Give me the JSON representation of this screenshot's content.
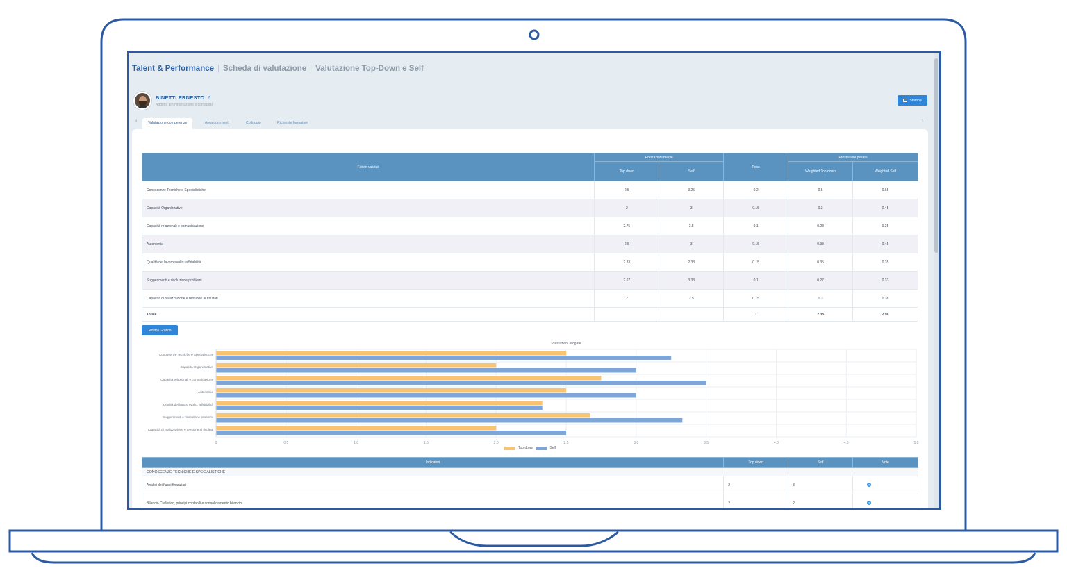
{
  "breadcrumb": [
    "Talent & Performance",
    "Scheda di valutazione",
    "Valutazione Top-Down e Self"
  ],
  "employee": {
    "name": "BINETTI ERNESTO",
    "role": "Addetto amministrazione e contabilità"
  },
  "print_label": "Stampa",
  "tabs": [
    "Valutazione competenze",
    "Area commenti",
    "Colloquio",
    "Richieste formative"
  ],
  "table": {
    "header_factors": "Fattori valutati",
    "group_avg": "Prestazioni medie",
    "col_topdown": "Top down",
    "col_self": "Self",
    "col_weight": "Peso",
    "group_weighted": "Prestazioni pesate",
    "col_wtopdown": "Weighted Top down",
    "col_wself": "Weighted Self",
    "rows": [
      {
        "factor": "Conoscenze Tecniche e Specialistiche",
        "topdown": "2.5",
        "self": "3.25",
        "weight": "0.2",
        "wtop": "0.5",
        "wself": "0.65"
      },
      {
        "factor": "Capacità Organizzative",
        "topdown": "2",
        "self": "3",
        "weight": "0.15",
        "wtop": "0.3",
        "wself": "0.45"
      },
      {
        "factor": "Capacità relazionali e comunicazione",
        "topdown": "2.75",
        "self": "3.5",
        "weight": "0.1",
        "wtop": "0.28",
        "wself": "0.35"
      },
      {
        "factor": "Autonomia",
        "topdown": "2.5",
        "self": "3",
        "weight": "0.15",
        "wtop": "0.38",
        "wself": "0.45"
      },
      {
        "factor": "Qualità del lavoro svolto: affidabilità",
        "topdown": "2.33",
        "self": "2.33",
        "weight": "0.15",
        "wtop": "0.35",
        "wself": "0.35"
      },
      {
        "factor": "Suggerimenti e risoluzione problemi",
        "topdown": "2.67",
        "self": "3.33",
        "weight": "0.1",
        "wtop": "0.27",
        "wself": "0.33"
      },
      {
        "factor": "Capacità di realizzazione e tensione ai risultati",
        "topdown": "2",
        "self": "2.5",
        "weight": "0.15",
        "wtop": "0.3",
        "wself": "0.38"
      }
    ],
    "total": {
      "label": "Totale",
      "weight": "1",
      "wtop": "2.38",
      "wself": "2.96"
    }
  },
  "show_chart_label": "Mostra Grafico",
  "chart_data": {
    "type": "bar",
    "orientation": "horizontal",
    "title": "Prestazioni erogate",
    "categories": [
      "Conoscenze Tecniche e Specialistiche",
      "Capacità Organizzative",
      "Capacità relazionali e comunicazione",
      "Autonomia",
      "Qualità del lavoro svolto: affidabilità",
      "Suggerimenti e risoluzione problemi",
      "Capacità di realizzazione e tensione ai risultati"
    ],
    "series": [
      {
        "name": "Top down",
        "values": [
          2.5,
          2,
          2.75,
          2.5,
          2.33,
          2.67,
          2
        ],
        "color": "#f8c471"
      },
      {
        "name": "Self",
        "values": [
          3.25,
          3,
          3.5,
          3,
          2.33,
          3.33,
          2.5
        ],
        "color": "#7ea6d8"
      }
    ],
    "xlim": [
      0,
      5
    ],
    "ticks": [
      "0",
      "0.5",
      "1.0",
      "1.5",
      "2.0",
      "2.5",
      "3.0",
      "3.5",
      "4.0",
      "4.5",
      "5.0"
    ],
    "grid": true,
    "legend": "bottom"
  },
  "indicators": {
    "col_indicators": "Indicatori",
    "col_topdown": "Top down",
    "col_self": "Self",
    "col_note": "Note",
    "section": "CONOSCENZE TECNICHE E SPECIALISTICHE",
    "rows": [
      {
        "name": "Analisi dei flussi finanziari",
        "topdown": "2",
        "self": "3"
      },
      {
        "name": "Bilancio Civilistico, principi contabili e consolidamento bilancio",
        "topdown": "2",
        "self": "2"
      }
    ]
  },
  "colors": {
    "accent": "#2f86d8",
    "header": "#5b93c0",
    "frame": "#2c5aa0",
    "brand": "#2d5fa0"
  }
}
